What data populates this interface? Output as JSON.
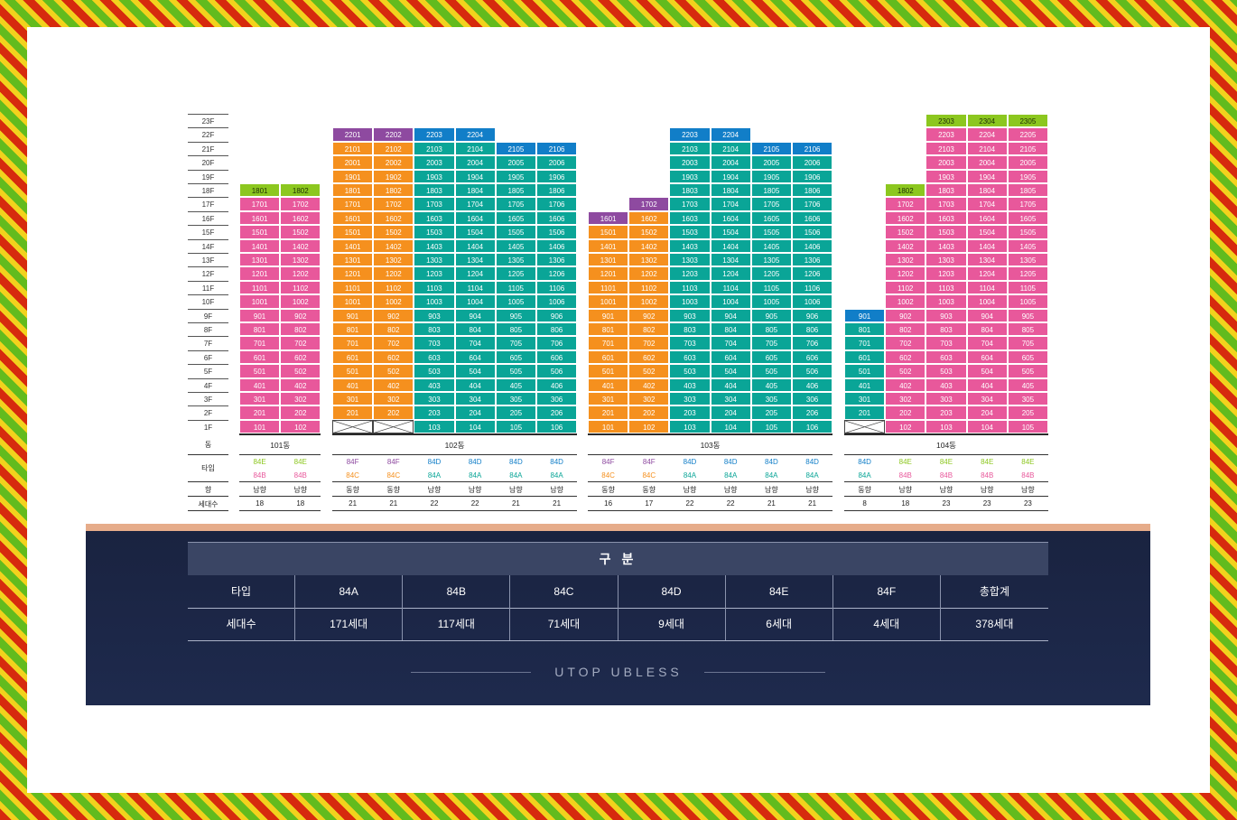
{
  "floors": [
    "23F",
    "22F",
    "21F",
    "20F",
    "19F",
    "18F",
    "17F",
    "16F",
    "15F",
    "14F",
    "13F",
    "12F",
    "11F",
    "10F",
    "9F",
    "8F",
    "7F",
    "6F",
    "5F",
    "4F",
    "3F",
    "2F",
    "1F"
  ],
  "labels": {
    "dong": "동",
    "type": "타입",
    "direction": "향",
    "households": "세대수"
  },
  "colors": {
    "84A": "#0aa597",
    "84B": "#e8589b",
    "84C": "#f5901e",
    "84D": "#117ec8",
    "84E": "#8cc71f",
    "84F": "#8e4aa0"
  },
  "buildings": [
    {
      "name": "101동",
      "lines": [
        {
          "top_floor": 18,
          "top_color": "green",
          "color": "pink",
          "pilotis": false,
          "type_top": "84E",
          "type_bottom": "84B",
          "direction": "남향",
          "count": "18",
          "num": 1
        },
        {
          "top_floor": 18,
          "top_color": "green",
          "color": "pink",
          "pilotis": false,
          "type_top": "84E",
          "type_bottom": "84B",
          "direction": "남향",
          "count": "18",
          "num": 2
        }
      ]
    },
    {
      "name": "102동",
      "lines": [
        {
          "top_floor": 22,
          "top_color": "purple",
          "color": "orange",
          "pilotis": true,
          "type_top": "84F",
          "type_bottom": "84C",
          "direction": "동향",
          "count": "21",
          "num": 1
        },
        {
          "top_floor": 22,
          "top_color": "purple",
          "color": "orange",
          "pilotis": true,
          "type_top": "84F",
          "type_bottom": "84C",
          "direction": "동향",
          "count": "21",
          "num": 2
        },
        {
          "top_floor": 22,
          "top_color": "blue",
          "color": "teal",
          "pilotis": false,
          "type_top": "84D",
          "type_bottom": "84A",
          "direction": "남향",
          "count": "22",
          "num": 3
        },
        {
          "top_floor": 22,
          "top_color": "blue",
          "color": "teal",
          "pilotis": false,
          "type_top": "84D",
          "type_bottom": "84A",
          "direction": "남향",
          "count": "22",
          "num": 4
        },
        {
          "top_floor": 21,
          "top_color": "blue",
          "color": "teal",
          "pilotis": false,
          "type_top": "84D",
          "type_bottom": "84A",
          "direction": "남향",
          "count": "21",
          "num": 5
        },
        {
          "top_floor": 21,
          "top_color": "blue",
          "color": "teal",
          "pilotis": false,
          "type_top": "84D",
          "type_bottom": "84A",
          "direction": "남향",
          "count": "21",
          "num": 6
        }
      ]
    },
    {
      "name": "103동",
      "lines": [
        {
          "top_floor": 16,
          "top_color": "purple",
          "color": "orange",
          "pilotis": false,
          "type_top": "84F",
          "type_bottom": "84C",
          "direction": "동향",
          "count": "16",
          "num": 1
        },
        {
          "top_floor": 17,
          "top_color": "purple",
          "color": "orange",
          "pilotis": false,
          "type_top": "84F",
          "type_bottom": "84C",
          "direction": "동향",
          "count": "17",
          "num": 2
        },
        {
          "top_floor": 22,
          "top_color": "blue",
          "color": "teal",
          "pilotis": false,
          "type_top": "84D",
          "type_bottom": "84A",
          "direction": "남향",
          "count": "22",
          "num": 3
        },
        {
          "top_floor": 22,
          "top_color": "blue",
          "color": "teal",
          "pilotis": false,
          "type_top": "84D",
          "type_bottom": "84A",
          "direction": "남향",
          "count": "22",
          "num": 4
        },
        {
          "top_floor": 21,
          "top_color": "blue",
          "color": "teal",
          "pilotis": false,
          "type_top": "84D",
          "type_bottom": "84A",
          "direction": "남향",
          "count": "21",
          "num": 5
        },
        {
          "top_floor": 21,
          "top_color": "blue",
          "color": "teal",
          "pilotis": false,
          "type_top": "84D",
          "type_bottom": "84A",
          "direction": "남향",
          "count": "21",
          "num": 6
        }
      ]
    },
    {
      "name": "104동",
      "lines": [
        {
          "top_floor": 9,
          "top_color": "blue",
          "color": "teal",
          "pilotis": true,
          "type_top": "84D",
          "type_bottom": "84A",
          "direction": "동향",
          "count": "8",
          "num": 1
        },
        {
          "top_floor": 18,
          "top_color": "green",
          "color": "pink",
          "pilotis": false,
          "type_top": "84E",
          "type_bottom": "84B",
          "direction": "남향",
          "count": "18",
          "num": 2
        },
        {
          "top_floor": 23,
          "top_color": "green",
          "color": "pink",
          "pilotis": false,
          "type_top": "84E",
          "type_bottom": "84B",
          "direction": "남향",
          "count": "23",
          "num": 3
        },
        {
          "top_floor": 23,
          "top_color": "green",
          "color": "pink",
          "pilotis": false,
          "type_top": "84E",
          "type_bottom": "84B",
          "direction": "남향",
          "count": "23",
          "num": 4
        },
        {
          "top_floor": 23,
          "top_color": "green",
          "color": "pink",
          "pilotis": false,
          "type_top": "84E",
          "type_bottom": "84B",
          "direction": "남향",
          "count": "23",
          "num": 5
        }
      ]
    }
  ],
  "summary": {
    "title": "구 분",
    "row1": [
      "타입",
      "84A",
      "84B",
      "84C",
      "84D",
      "84E",
      "84F",
      "총합계"
    ],
    "row2": [
      "세대수",
      "171세대",
      "117세대",
      "71세대",
      "9세대",
      "6세대",
      "4세대",
      "378세대"
    ]
  },
  "brand": "UTOP UBLESS"
}
